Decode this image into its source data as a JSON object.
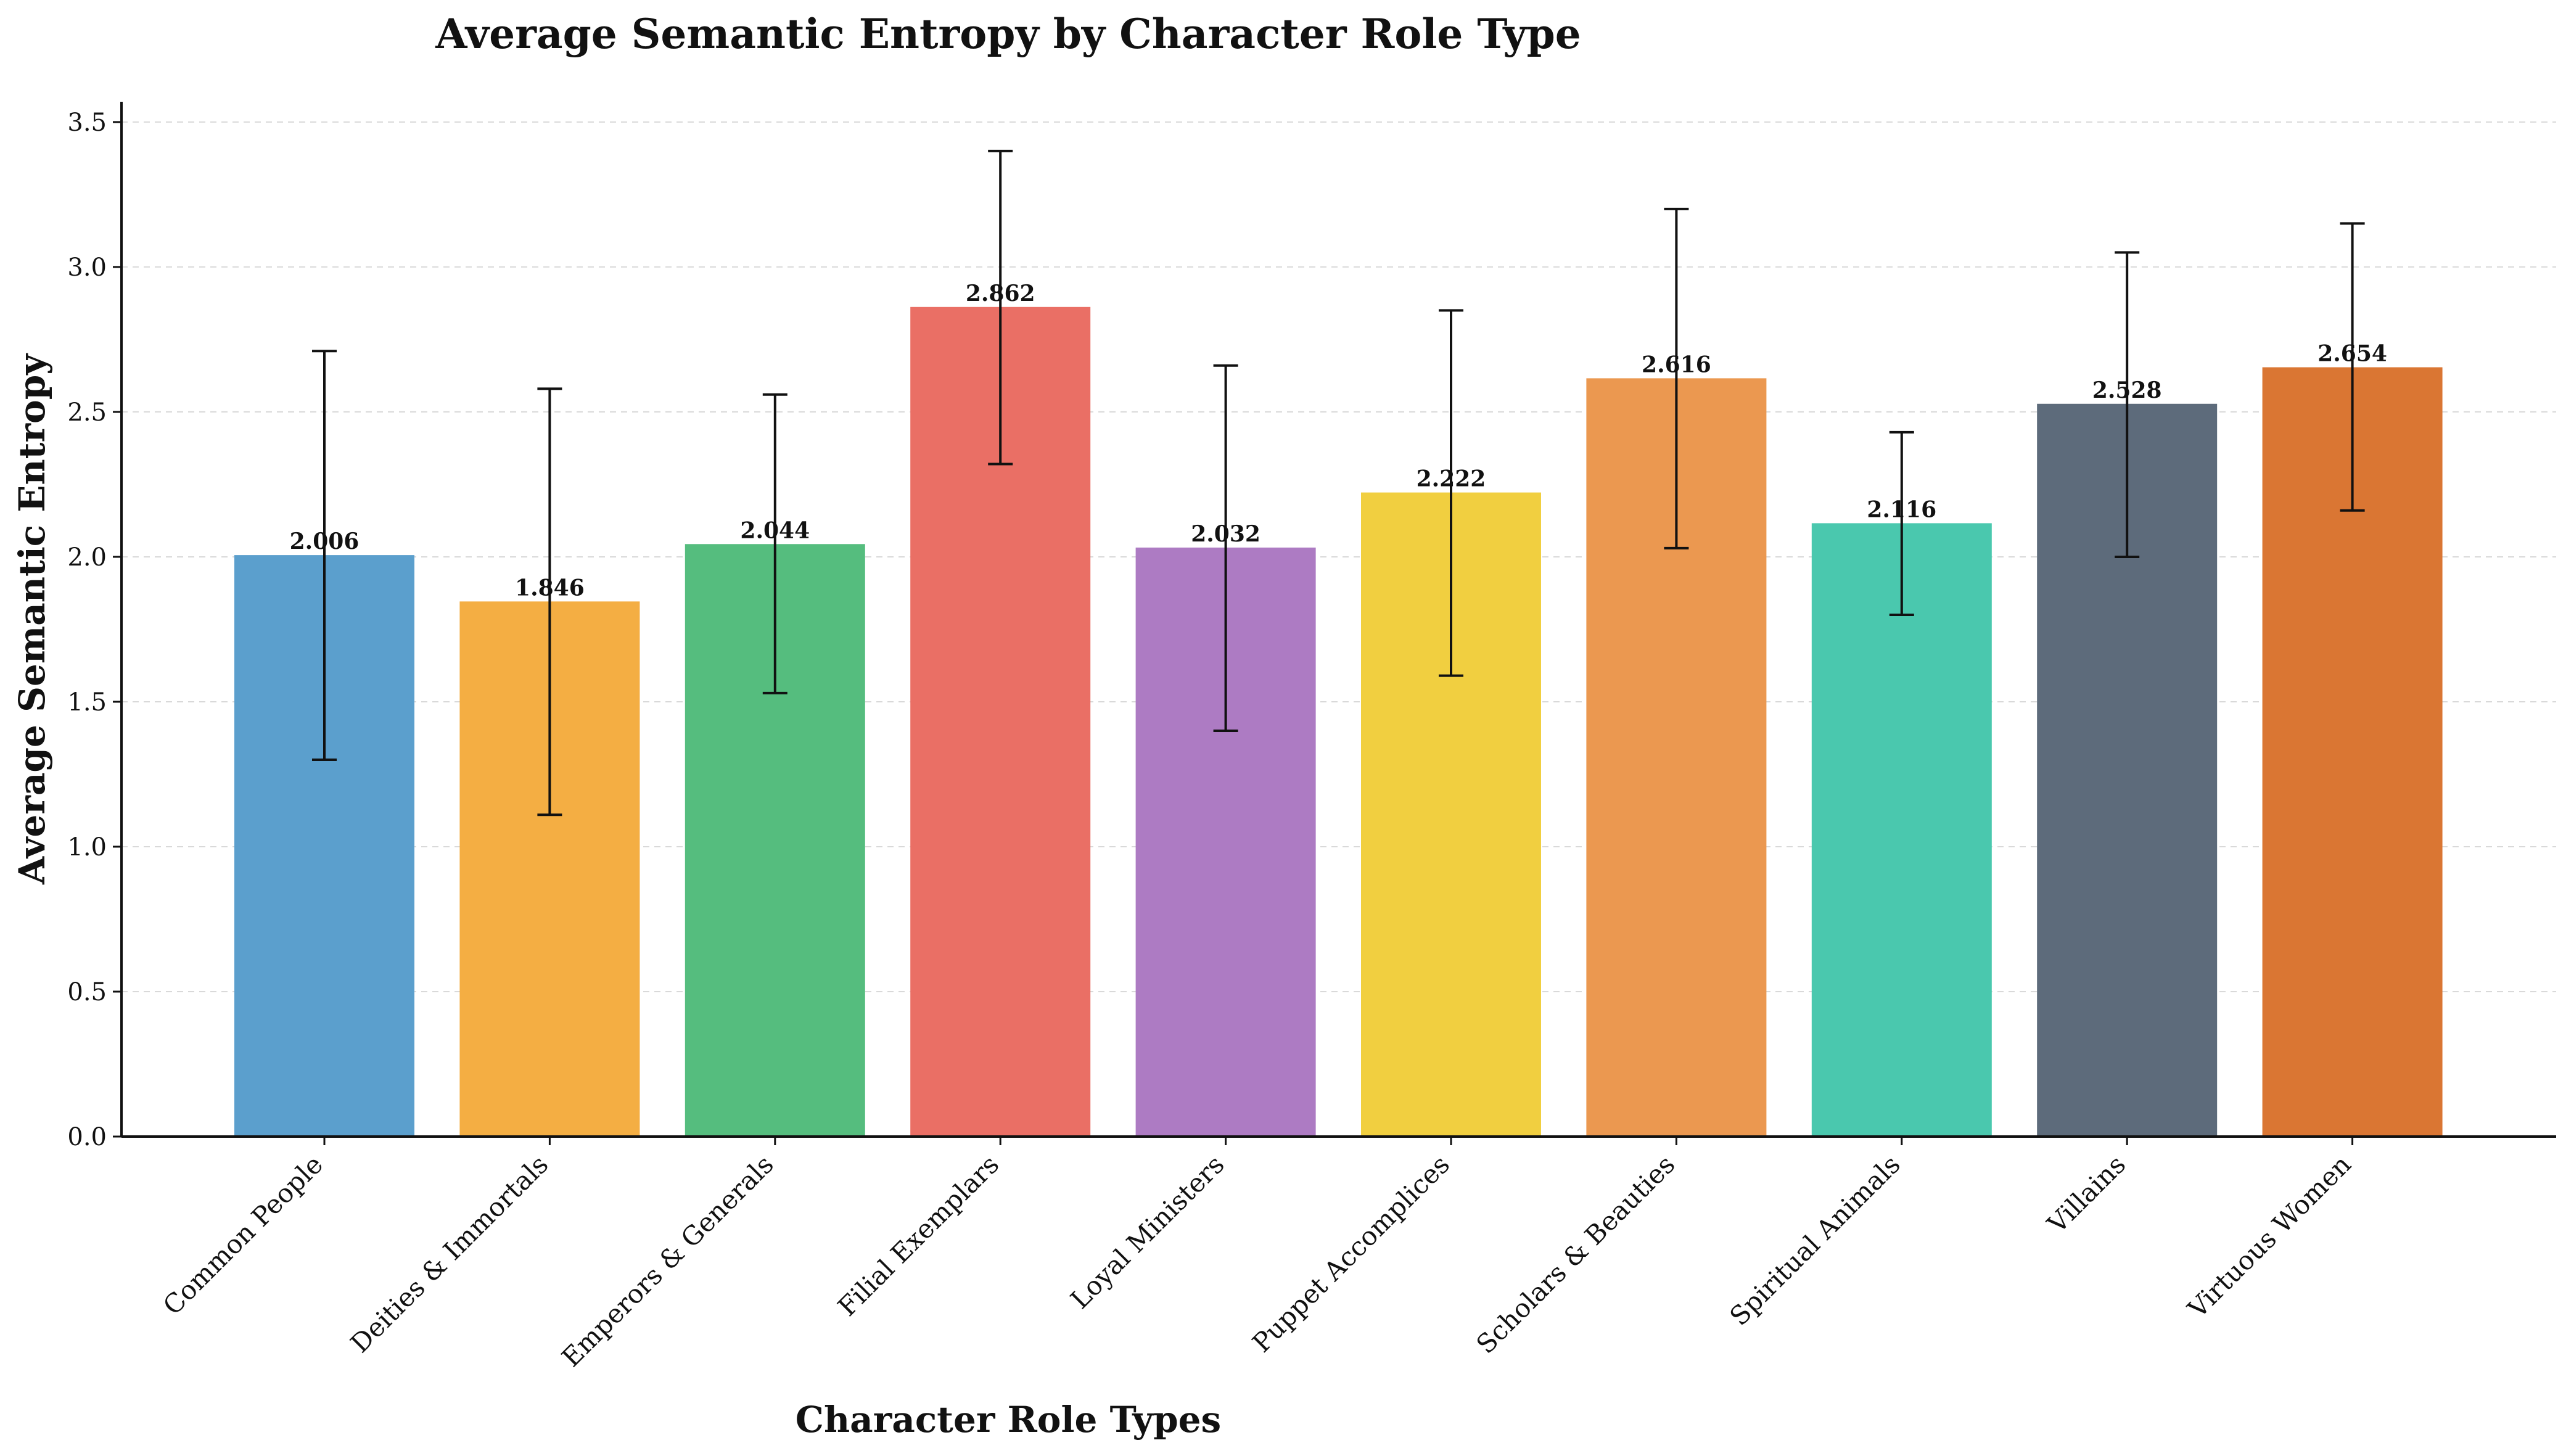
{
  "chart_data": {
    "type": "bar",
    "title": "Average Semantic Entropy by Character Role Type",
    "xlabel": "Character Role Types",
    "ylabel": "Average Semantic Entropy",
    "ylim": [
      0,
      3.57
    ],
    "yticks": [
      0.0,
      0.5,
      1.0,
      1.5,
      2.0,
      2.5,
      3.0,
      3.5
    ],
    "ytick_labels": [
      "0.0",
      "0.5",
      "1.0",
      "1.5",
      "2.0",
      "2.5",
      "3.0",
      "3.5"
    ],
    "grid": "horizontal dashed",
    "categories": [
      "Common People",
      "Deities & Immortals",
      "Emperors & Generals",
      "Filial Exemplars",
      "Loyal Ministers",
      "Puppet Accomplices",
      "Scholars & Beauties",
      "Spiritual Animals",
      "Villains",
      "Virtuous Women"
    ],
    "values": [
      2.006,
      1.846,
      2.044,
      2.862,
      2.032,
      2.222,
      2.616,
      2.116,
      2.528,
      2.654
    ],
    "value_labels": [
      "2.006",
      "1.846",
      "2.044",
      "2.862",
      "2.032",
      "2.222",
      "2.616",
      "2.116",
      "2.528",
      "2.654"
    ],
    "error_low": [
      1.3,
      1.11,
      1.53,
      2.32,
      1.4,
      1.59,
      2.03,
      1.8,
      2.0,
      2.16
    ],
    "error_high": [
      2.71,
      2.58,
      2.56,
      3.4,
      2.66,
      2.85,
      3.2,
      2.43,
      3.05,
      3.15
    ],
    "colors": [
      "#5b9fcd",
      "#f4ae43",
      "#55bd7e",
      "#ea6f65",
      "#ad7bc3",
      "#f1cf40",
      "#eb9850",
      "#4ac8ae",
      "#5d6b7b",
      "#da7633"
    ]
  }
}
